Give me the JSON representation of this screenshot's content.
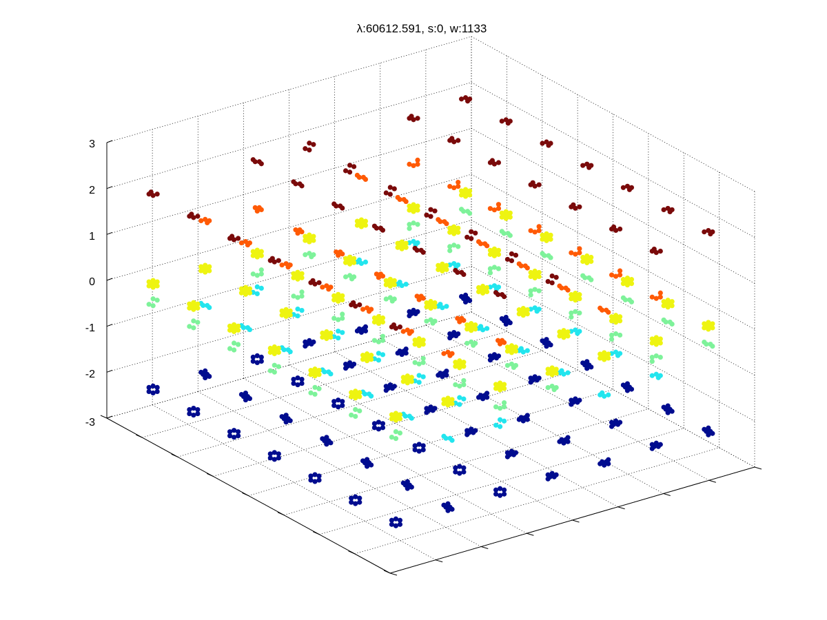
{
  "chart_data": {
    "type": "scatter",
    "title": "λ:60612.591, s:0, w:1133",
    "xlabel": "",
    "ylabel": "",
    "zlabel": "",
    "z_ticks": [
      "3",
      "2",
      "1",
      "0",
      "-1",
      "-2",
      "-3"
    ],
    "zlim": [
      -3,
      3
    ],
    "grid": true,
    "box": true,
    "colormap": [
      "#00008f",
      "#00ffff",
      "#80ff80",
      "#ffff00",
      "#ff5a00",
      "#800000"
    ],
    "levels": [
      {
        "z": -2.3,
        "color": "#000c8f"
      },
      {
        "z": -0.8,
        "color": "#22e5ee"
      },
      {
        "z": -0.4,
        "color": "#7ef29a"
      },
      {
        "z": 0.0,
        "color": "#eef411"
      },
      {
        "z": 1.0,
        "color": "#ff5a05"
      },
      {
        "z": 2.0,
        "color": "#7a0a0a"
      }
    ]
  }
}
